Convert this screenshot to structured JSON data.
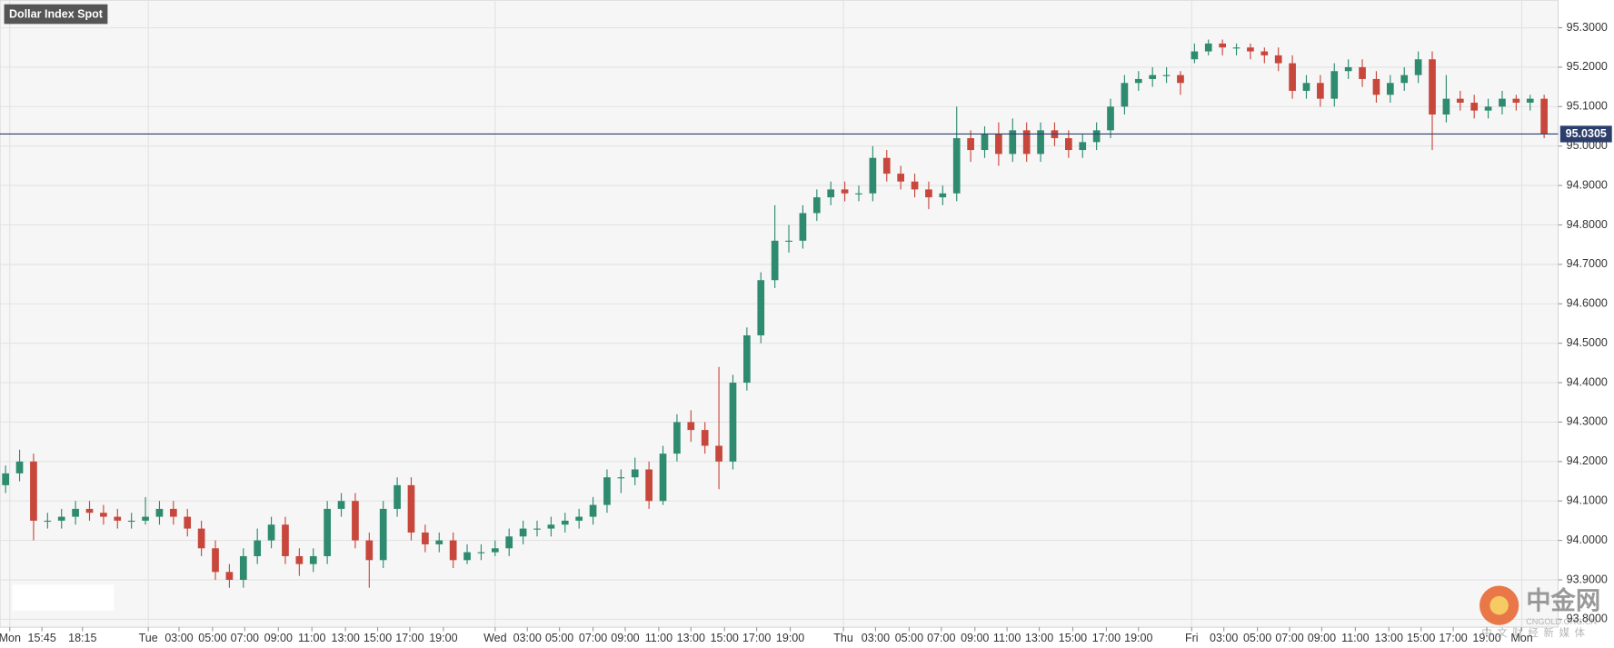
{
  "chart_data": {
    "type": "candlestick",
    "title": "Dollar Index Spot",
    "open": [
      94.14,
      94.17,
      94.2,
      94.05,
      94.05,
      94.06,
      94.08,
      94.07,
      94.06,
      94.05,
      94.05,
      94.06,
      94.08,
      94.06,
      94.03,
      93.98,
      93.92,
      93.9,
      93.96,
      94.0,
      94.04,
      93.96,
      93.94,
      93.96,
      94.08,
      94.1,
      94.0,
      93.95,
      94.08,
      94.14,
      94.02,
      93.99,
      94.0,
      93.95,
      93.97,
      93.97,
      93.98,
      94.01,
      94.03,
      94.03,
      94.04,
      94.05,
      94.06,
      94.09,
      94.16,
      94.16,
      94.18,
      94.1,
      94.22,
      94.3,
      94.28,
      94.24,
      94.2,
      94.4,
      94.52,
      94.66,
      94.76,
      94.76,
      94.83,
      94.87,
      94.89,
      94.88,
      94.88,
      94.97,
      94.93,
      94.91,
      94.89,
      94.87,
      94.88,
      95.02,
      94.99,
      95.03,
      94.98,
      95.04,
      94.98,
      95.04,
      95.02,
      94.99,
      95.01,
      95.04,
      95.1,
      95.16,
      95.17,
      95.18,
      95.18,
      95.22,
      95.24,
      95.26,
      95.25,
      95.25,
      95.24,
      95.23,
      95.21,
      95.14,
      95.16,
      95.12,
      95.19,
      95.2,
      95.17,
      95.13,
      95.16,
      95.18,
      95.22,
      95.08,
      95.12,
      95.11,
      95.09,
      95.1,
      95.12,
      95.11,
      95.12
    ],
    "high": [
      94.19,
      94.23,
      94.22,
      94.07,
      94.08,
      94.1,
      94.1,
      94.09,
      94.08,
      94.07,
      94.11,
      94.1,
      94.1,
      94.08,
      94.05,
      94.0,
      93.94,
      93.98,
      94.03,
      94.06,
      94.06,
      93.98,
      93.98,
      94.1,
      94.12,
      94.12,
      94.02,
      94.1,
      94.16,
      94.16,
      94.04,
      94.02,
      94.02,
      93.99,
      93.99,
      94.0,
      94.03,
      94.05,
      94.05,
      94.06,
      94.07,
      94.08,
      94.11,
      94.18,
      94.18,
      94.21,
      94.2,
      94.24,
      94.32,
      94.33,
      94.3,
      94.44,
      94.42,
      94.54,
      94.68,
      94.85,
      94.8,
      94.85,
      94.89,
      94.91,
      94.91,
      94.9,
      95.0,
      94.99,
      94.95,
      94.93,
      94.91,
      94.9,
      95.1,
      95.04,
      95.05,
      95.06,
      95.07,
      95.06,
      95.06,
      95.06,
      95.04,
      95.03,
      95.06,
      95.12,
      95.18,
      95.19,
      95.2,
      95.2,
      95.19,
      95.26,
      95.27,
      95.27,
      95.26,
      95.26,
      95.25,
      95.25,
      95.23,
      95.18,
      95.18,
      95.21,
      95.22,
      95.22,
      95.19,
      95.18,
      95.2,
      95.24,
      95.24,
      95.18,
      95.14,
      95.13,
      95.12,
      95.14,
      95.13,
      95.13,
      95.13
    ],
    "low": [
      94.12,
      94.15,
      94.0,
      94.03,
      94.03,
      94.04,
      94.05,
      94.04,
      94.03,
      94.03,
      94.04,
      94.04,
      94.04,
      94.01,
      93.96,
      93.9,
      93.88,
      93.88,
      93.94,
      93.98,
      93.94,
      93.91,
      93.92,
      93.94,
      94.06,
      93.98,
      93.88,
      93.93,
      94.06,
      94.0,
      93.97,
      93.97,
      93.93,
      93.94,
      93.95,
      93.96,
      93.96,
      93.99,
      94.01,
      94.01,
      94.02,
      94.03,
      94.04,
      94.07,
      94.12,
      94.14,
      94.08,
      94.09,
      94.2,
      94.25,
      94.22,
      94.13,
      94.18,
      94.38,
      94.5,
      94.64,
      94.73,
      94.74,
      94.81,
      94.85,
      94.86,
      94.86,
      94.86,
      94.91,
      94.89,
      94.87,
      94.84,
      94.85,
      94.86,
      94.96,
      94.97,
      94.95,
      94.96,
      94.96,
      94.96,
      95.0,
      94.97,
      94.97,
      94.99,
      95.02,
      95.08,
      95.14,
      95.15,
      95.16,
      95.13,
      95.21,
      95.23,
      95.23,
      95.23,
      95.22,
      95.21,
      95.19,
      95.12,
      95.12,
      95.1,
      95.1,
      95.17,
      95.15,
      95.11,
      95.11,
      95.14,
      95.16,
      94.99,
      95.06,
      95.09,
      95.07,
      95.07,
      95.08,
      95.09,
      95.09,
      95.02
    ],
    "close": [
      94.17,
      94.2,
      94.05,
      94.05,
      94.06,
      94.08,
      94.07,
      94.06,
      94.05,
      94.05,
      94.06,
      94.08,
      94.06,
      94.03,
      93.98,
      93.92,
      93.9,
      93.96,
      94.0,
      94.04,
      93.96,
      93.94,
      93.96,
      94.08,
      94.1,
      94.0,
      93.95,
      94.08,
      94.14,
      94.02,
      93.99,
      94.0,
      93.95,
      93.97,
      93.97,
      93.98,
      94.01,
      94.03,
      94.03,
      94.04,
      94.05,
      94.06,
      94.09,
      94.16,
      94.16,
      94.18,
      94.1,
      94.22,
      94.3,
      94.28,
      94.24,
      94.2,
      94.4,
      94.52,
      94.66,
      94.76,
      94.76,
      94.83,
      94.87,
      94.89,
      94.88,
      94.88,
      94.97,
      94.93,
      94.91,
      94.89,
      94.87,
      94.88,
      95.02,
      94.99,
      95.03,
      94.98,
      95.04,
      94.98,
      95.04,
      95.02,
      94.99,
      95.01,
      95.04,
      95.1,
      95.16,
      95.17,
      95.18,
      95.18,
      95.16,
      95.24,
      95.26,
      95.25,
      95.25,
      95.24,
      95.23,
      95.21,
      95.14,
      95.16,
      95.12,
      95.19,
      95.2,
      95.17,
      95.13,
      95.16,
      95.18,
      95.22,
      95.08,
      95.12,
      95.11,
      95.09,
      95.1,
      95.12,
      95.11,
      95.12,
      95.03
    ],
    "up_color": "#2e8b6f",
    "down_color": "#c8473c",
    "xlim": [
      -0.4,
      111
    ],
    "xticks": [
      {
        "value": 0.3,
        "label": "Mon"
      },
      {
        "value": 2.6,
        "label": "15:45"
      },
      {
        "value": 5.5,
        "label": "18:15"
      },
      {
        "value": 10.2,
        "label": "Tue"
      },
      {
        "value": 12.4,
        "label": "03:00"
      },
      {
        "value": 14.8,
        "label": "05:00"
      },
      {
        "value": 17.1,
        "label": "07:00"
      },
      {
        "value": 19.5,
        "label": "09:00"
      },
      {
        "value": 21.9,
        "label": "11:00"
      },
      {
        "value": 24.3,
        "label": "13:00"
      },
      {
        "value": 26.6,
        "label": "15:00"
      },
      {
        "value": 28.9,
        "label": "17:00"
      },
      {
        "value": 31.3,
        "label": "19:00"
      },
      {
        "value": 35.0,
        "label": "Wed"
      },
      {
        "value": 37.3,
        "label": "03:00"
      },
      {
        "value": 39.6,
        "label": "05:00"
      },
      {
        "value": 42.0,
        "label": "07:00"
      },
      {
        "value": 44.3,
        "label": "09:00"
      },
      {
        "value": 46.7,
        "label": "11:00"
      },
      {
        "value": 49.0,
        "label": "13:00"
      },
      {
        "value": 51.4,
        "label": "15:00"
      },
      {
        "value": 53.7,
        "label": "17:00"
      },
      {
        "value": 56.1,
        "label": "19:00"
      },
      {
        "value": 59.9,
        "label": "Thu"
      },
      {
        "value": 62.2,
        "label": "03:00"
      },
      {
        "value": 64.6,
        "label": "05:00"
      },
      {
        "value": 66.9,
        "label": "07:00"
      },
      {
        "value": 69.3,
        "label": "09:00"
      },
      {
        "value": 71.6,
        "label": "11:00"
      },
      {
        "value": 73.9,
        "label": "13:00"
      },
      {
        "value": 76.3,
        "label": "15:00"
      },
      {
        "value": 78.7,
        "label": "17:00"
      },
      {
        "value": 81.0,
        "label": "19:00"
      },
      {
        "value": 84.8,
        "label": "Fri"
      },
      {
        "value": 87.1,
        "label": "03:00"
      },
      {
        "value": 89.5,
        "label": "05:00"
      },
      {
        "value": 91.8,
        "label": "07:00"
      },
      {
        "value": 94.1,
        "label": "09:00"
      },
      {
        "value": 96.5,
        "label": "11:00"
      },
      {
        "value": 98.9,
        "label": "13:00"
      },
      {
        "value": 101.2,
        "label": "15:00"
      },
      {
        "value": 103.5,
        "label": "17:00"
      },
      {
        "value": 105.9,
        "label": "19:00"
      },
      {
        "value": 108.4,
        "label": "Mon"
      }
    ],
    "ylim": [
      93.78,
      95.37
    ],
    "yticks": [
      {
        "value": 93.8,
        "label": "93.8000"
      },
      {
        "value": 93.9,
        "label": "93.9000"
      },
      {
        "value": 94.0,
        "label": "94.0000"
      },
      {
        "value": 94.1,
        "label": "94.1000"
      },
      {
        "value": 94.2,
        "label": "94.2000"
      },
      {
        "value": 94.3,
        "label": "94.3000"
      },
      {
        "value": 94.4,
        "label": "94.4000"
      },
      {
        "value": 94.5,
        "label": "94.5000"
      },
      {
        "value": 94.6,
        "label": "94.6000"
      },
      {
        "value": 94.7,
        "label": "94.7000"
      },
      {
        "value": 94.8,
        "label": "94.8000"
      },
      {
        "value": 94.9,
        "label": "94.9000"
      },
      {
        "value": 95.0,
        "label": "95.0000"
      },
      {
        "value": 95.1,
        "label": "95.1000"
      },
      {
        "value": 95.2,
        "label": "95.2000"
      },
      {
        "value": 95.3,
        "label": "95.3000"
      }
    ],
    "grid": true,
    "last_price": 95.0305,
    "last_price_color": "#2c3e6b",
    "watermark": {
      "logo": "中金网",
      "url": "CNGOLD.ORG.CN",
      "slogan": "中文财经新媒体"
    }
  }
}
